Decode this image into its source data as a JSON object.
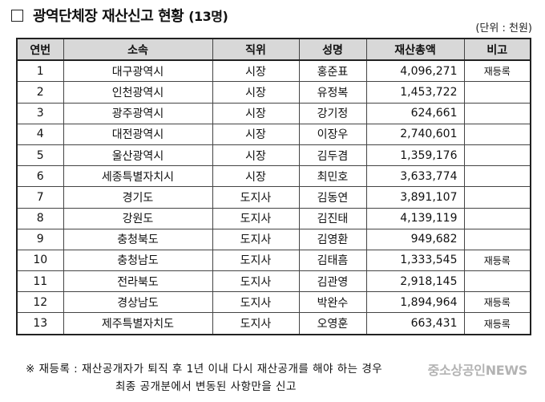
{
  "header": {
    "checkbox_glyph": "",
    "title": "광역단체장 재산신고 현황",
    "count": "(13명)",
    "unit": "(단위 : 천원)"
  },
  "table": {
    "columns": [
      "연번",
      "소속",
      "직위",
      "성명",
      "재산총액",
      "비고"
    ],
    "rows": [
      {
        "no": "1",
        "org": "대구광역시",
        "position": "시장",
        "name": "홍준표",
        "amount": "4,096,271",
        "note": "재등록"
      },
      {
        "no": "2",
        "org": "인천광역시",
        "position": "시장",
        "name": "유정복",
        "amount": "1,453,722",
        "note": ""
      },
      {
        "no": "3",
        "org": "광주광역시",
        "position": "시장",
        "name": "강기정",
        "amount": "624,661",
        "note": ""
      },
      {
        "no": "4",
        "org": "대전광역시",
        "position": "시장",
        "name": "이장우",
        "amount": "2,740,601",
        "note": ""
      },
      {
        "no": "5",
        "org": "울산광역시",
        "position": "시장",
        "name": "김두겸",
        "amount": "1,359,176",
        "note": ""
      },
      {
        "no": "6",
        "org": "세종특별자치시",
        "position": "시장",
        "name": "최민호",
        "amount": "3,633,774",
        "note": ""
      },
      {
        "no": "7",
        "org": "경기도",
        "position": "도지사",
        "name": "김동연",
        "amount": "3,891,107",
        "note": ""
      },
      {
        "no": "8",
        "org": "강원도",
        "position": "도지사",
        "name": "김진태",
        "amount": "4,139,119",
        "note": ""
      },
      {
        "no": "9",
        "org": "충청북도",
        "position": "도지사",
        "name": "김영환",
        "amount": "949,682",
        "note": ""
      },
      {
        "no": "10",
        "org": "충청남도",
        "position": "도지사",
        "name": "김태흠",
        "amount": "1,333,545",
        "note": "재등록"
      },
      {
        "no": "11",
        "org": "전라북도",
        "position": "도지사",
        "name": "김관영",
        "amount": "2,918,145",
        "note": ""
      },
      {
        "no": "12",
        "org": "경상남도",
        "position": "도지사",
        "name": "박완수",
        "amount": "1,894,964",
        "note": "재등록"
      },
      {
        "no": "13",
        "org": "제주특별자치도",
        "position": "도지사",
        "name": "오영훈",
        "amount": "663,431",
        "note": "재등록"
      }
    ]
  },
  "footnote": {
    "line1": "※ 재등록 : 재산공개자가 퇴직 후 1년 이내 다시 재산공개를 해야 하는 경우",
    "line2": "최종 공개분에서 변동된 사항만을 신고"
  },
  "watermark": "중소상공인NEWS"
}
